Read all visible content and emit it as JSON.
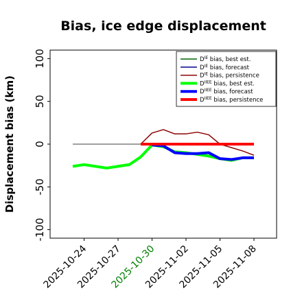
{
  "chart_data": {
    "type": "line",
    "title": "Bias, ice edge displacement",
    "y_label": "Displacement bias (km)",
    "x": [
      "2025-10-23",
      "2025-10-24",
      "2025-10-25",
      "2025-10-26",
      "2025-10-27",
      "2025-10-28",
      "2025-10-29",
      "2025-10-30",
      "2025-10-31",
      "2025-11-01",
      "2025-11-02",
      "2025-11-03",
      "2025-11-04",
      "2025-11-05",
      "2025-11-06",
      "2025-11-07",
      "2025-11-08"
    ],
    "xlim": [
      "2025-10-21",
      "2025-11-10"
    ],
    "xticks": [
      "2025-10-24",
      "2025-10-27",
      "2025-10-30",
      "2025-11-02",
      "2025-11-05",
      "2025-11-08"
    ],
    "xtick_colors": [
      "#000000",
      "#000000",
      "#008000",
      "#000000",
      "#000000",
      "#000000"
    ],
    "ylim": [
      -110,
      110
    ],
    "yticks": [
      -100,
      -50,
      0,
      50,
      100
    ],
    "reference_line": {
      "y": 0,
      "color": "#666666",
      "from": "2025-10-23",
      "to": "2025-11-08"
    },
    "legend": "upper right",
    "series": [
      {
        "name": "DIE bias, best est.",
        "color": "#006400",
        "width": 1.5,
        "values": [
          -26,
          -24,
          -25,
          -28,
          -25,
          -23,
          -15,
          -1,
          -3,
          -8,
          -10,
          -12,
          -13,
          -17,
          -19,
          -16,
          -16
        ]
      },
      {
        "name": "DIE bias, forecast",
        "color": "#00008b",
        "width": 1.5,
        "values": [
          null,
          null,
          null,
          null,
          null,
          null,
          null,
          -1,
          -2,
          -10,
          -11,
          -11,
          -10,
          -17,
          -18,
          -16,
          -16
        ]
      },
      {
        "name": "DIE bias, persistence",
        "color": "#8b0000",
        "width": 1.5,
        "values": [
          null,
          null,
          null,
          null,
          null,
          null,
          0,
          13,
          17,
          12,
          12,
          14,
          11,
          0,
          -4,
          -8,
          -13
        ]
      },
      {
        "name": "DIIEE bias, best est.",
        "color": "#00ff00",
        "width": 4,
        "values": [
          -26,
          -24,
          -26,
          -28,
          -26,
          -24,
          -15,
          -1,
          -3,
          -9,
          -10,
          -12,
          -14,
          -17,
          -19,
          -16,
          -16
        ]
      },
      {
        "name": "DIIEE bias, forecast",
        "color": "#0000ff",
        "width": 4,
        "values": [
          null,
          null,
          null,
          null,
          null,
          null,
          null,
          -1,
          -2,
          -10,
          -11,
          -11,
          -10,
          -17,
          -18,
          -16,
          -16
        ]
      },
      {
        "name": "DIIEE bias, persistence",
        "color": "#ff0000",
        "width": 4,
        "values": [
          null,
          null,
          null,
          null,
          null,
          null,
          0,
          0,
          0,
          0,
          0,
          0,
          0,
          0,
          0,
          0,
          0
        ]
      }
    ]
  }
}
